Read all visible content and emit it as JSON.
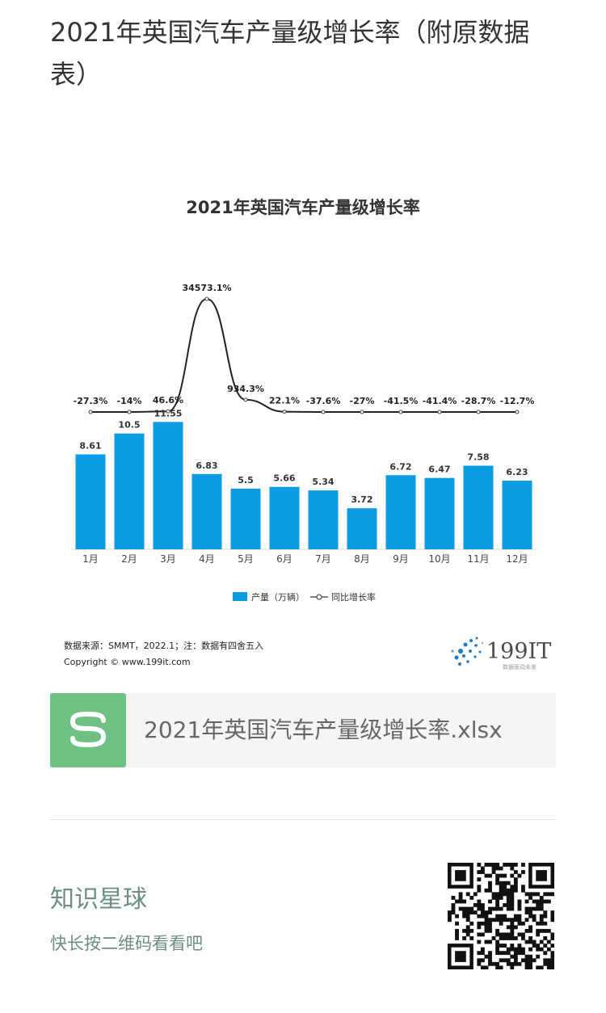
{
  "article": {
    "title": "2021年英国汽车产量级增长率（附原数据表）"
  },
  "chart_data": {
    "type": "bar",
    "title": "2021年英国汽车产量级增长率",
    "categories": [
      "1月",
      "2月",
      "3月",
      "4月",
      "5月",
      "6月",
      "7月",
      "8月",
      "9月",
      "10月",
      "11月",
      "12月"
    ],
    "series": [
      {
        "name": "产量（万辆）",
        "type": "bar",
        "values": [
          8.61,
          10.5,
          11.55,
          6.83,
          5.5,
          5.66,
          5.34,
          3.72,
          6.72,
          6.47,
          7.58,
          6.23
        ],
        "labels": [
          "8.61",
          "10.5",
          "11.55",
          "6.83",
          "5.5",
          "5.66",
          "5.34",
          "3.72",
          "6.72",
          "6.47",
          "7.58",
          "6.23"
        ]
      },
      {
        "name": "同比增长率",
        "type": "line",
        "values": [
          -27.3,
          -14,
          46.6,
          34573.1,
          934.3,
          22.1,
          -37.6,
          -27,
          -41.5,
          -41.4,
          -28.7,
          -12.7
        ],
        "labels": [
          "-27.3%",
          "-14%",
          "46.6%",
          "34573.1%",
          "934.3%",
          "22.1%",
          "-37.6%",
          "-27%",
          "-41.5%",
          "-41.4%",
          "-28.7%",
          "-12.7%"
        ]
      }
    ],
    "legend": [
      "产量（万辆）",
      "同比增长率"
    ],
    "legend_position": "bottom",
    "grid": false,
    "colors": {
      "bar": "#0a9be2",
      "line": "#222222"
    },
    "source": "数据来源：SMMT，2022.1；注：数据有四舍五入",
    "copyright": "Copyright © www.199it.com",
    "logo_text": "199IT",
    "logo_tagline": "数据驱动未来"
  },
  "file": {
    "name": "2021年英国汽车产量级增长率.xlsx",
    "icon": "spreadsheet-icon",
    "color": "#6ec183"
  },
  "planet": {
    "title": "知识星球",
    "subtitle": "快长按二维码看看吧"
  }
}
